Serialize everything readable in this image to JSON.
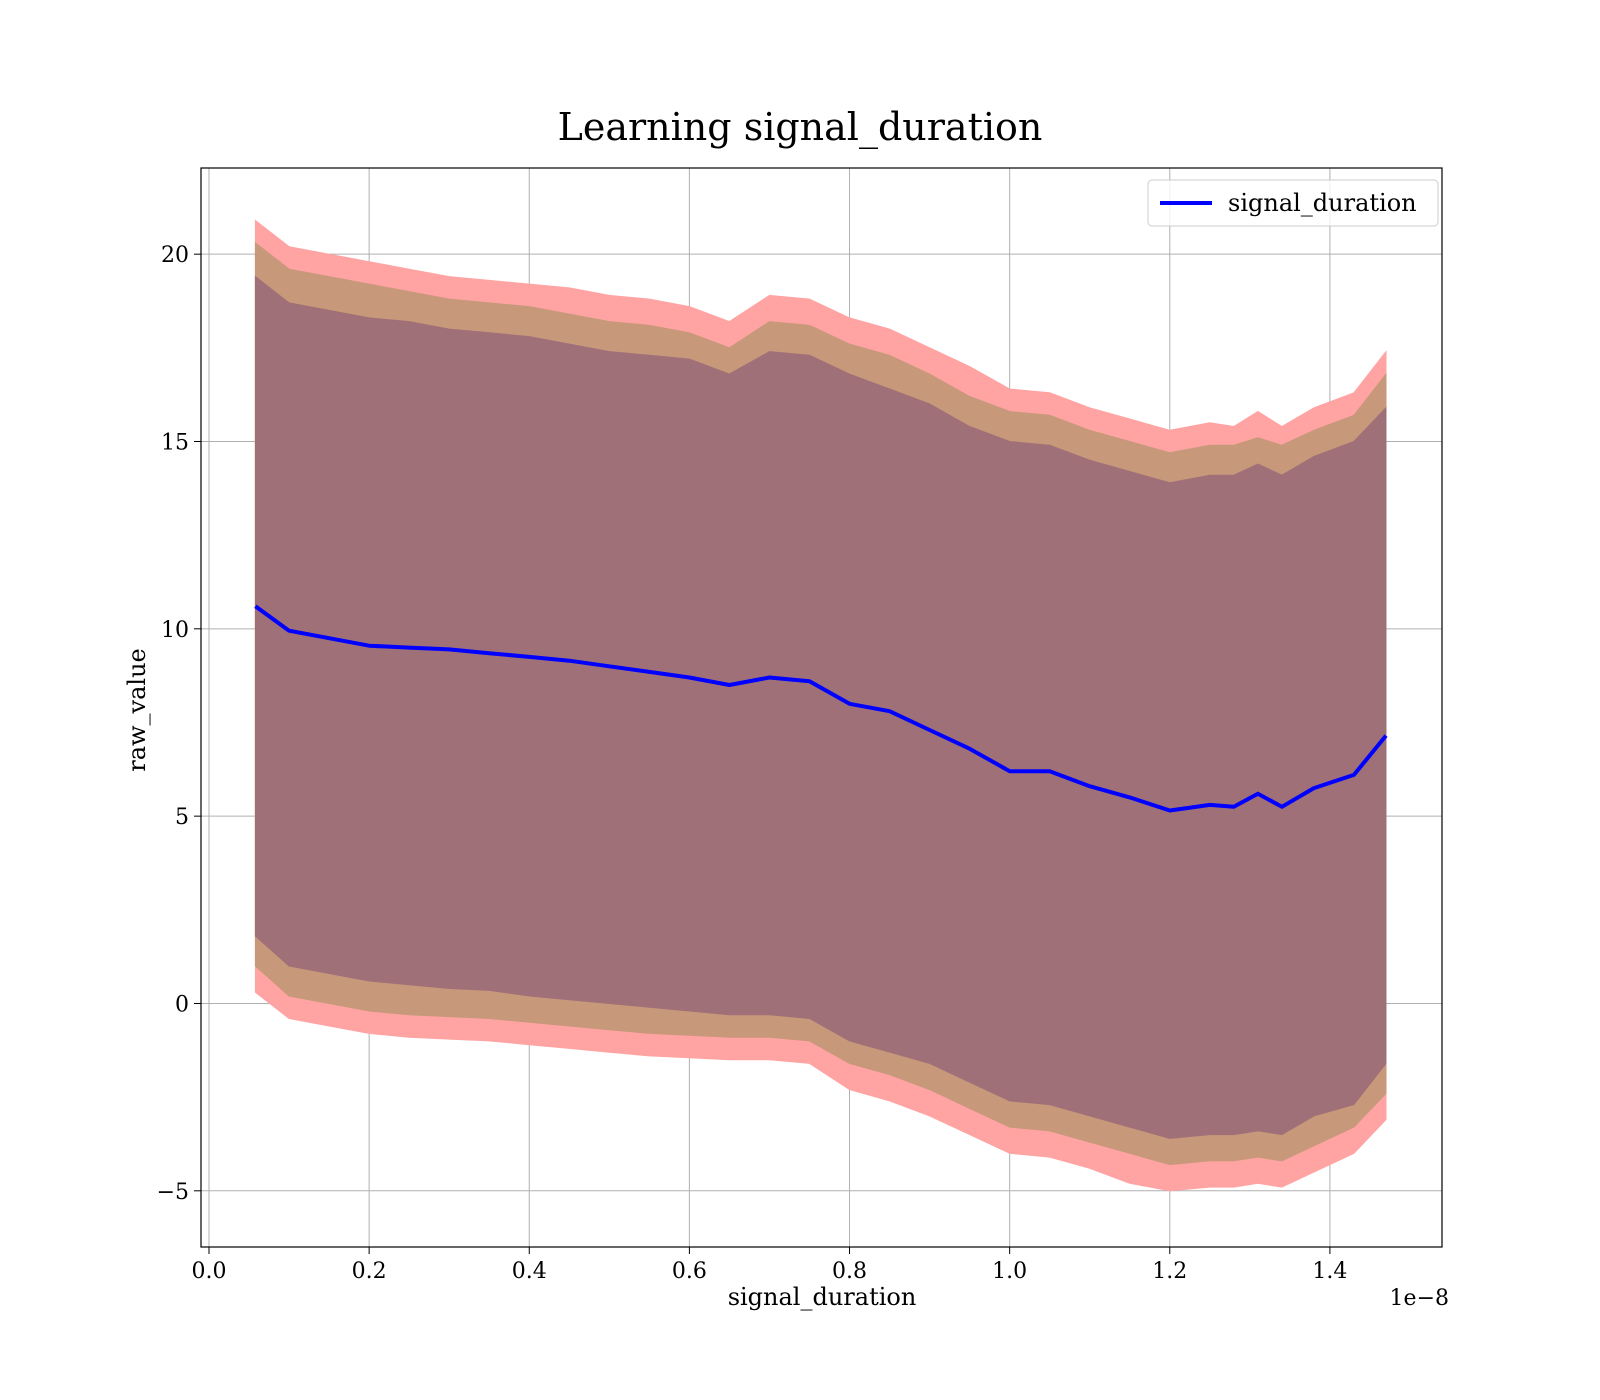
{
  "chart_data": {
    "type": "area",
    "title": "Learning signal_duration",
    "xlabel": "signal_duration",
    "ylabel": "raw_value",
    "x_offset_label": "1e−8",
    "xlim": [
      -0.01,
      1.54
    ],
    "ylim": [
      -6.5,
      22.3
    ],
    "x_ticks": [
      0.0,
      0.2,
      0.4,
      0.6,
      0.8,
      1.0,
      1.2,
      1.4
    ],
    "x_tick_labels": [
      "0.0",
      "0.2",
      "0.4",
      "0.6",
      "0.8",
      "1.0",
      "1.2",
      "1.4"
    ],
    "y_ticks": [
      -5,
      0,
      5,
      10,
      15,
      20
    ],
    "y_tick_labels": [
      "−5",
      "0",
      "5",
      "10",
      "15",
      "20"
    ],
    "grid": true,
    "legend_position": "top-right",
    "colors": {
      "line": "#0000ff",
      "band_outer": "#ffa3a3",
      "band_middle": "#c8987a",
      "band_inner": "#a07078"
    },
    "x": [
      0.058,
      0.1,
      0.15,
      0.2,
      0.25,
      0.3,
      0.35,
      0.4,
      0.45,
      0.5,
      0.55,
      0.6,
      0.65,
      0.7,
      0.75,
      0.8,
      0.85,
      0.9,
      0.95,
      1.0,
      1.05,
      1.1,
      1.15,
      1.2,
      1.25,
      1.28,
      1.31,
      1.34,
      1.38,
      1.43,
      1.47
    ],
    "series": [
      {
        "name": "signal_duration",
        "values": [
          10.6,
          9.95,
          9.75,
          9.55,
          9.5,
          9.45,
          9.35,
          9.25,
          9.15,
          9.0,
          8.85,
          8.7,
          8.5,
          8.7,
          8.6,
          8.0,
          7.8,
          7.3,
          6.8,
          6.2,
          6.2,
          5.8,
          5.5,
          5.15,
          5.3,
          5.25,
          5.6,
          5.25,
          5.75,
          6.1,
          7.15
        ]
      }
    ],
    "bands": [
      {
        "role": "outer",
        "upper": [
          20.9,
          20.2,
          20.0,
          19.8,
          19.6,
          19.4,
          19.3,
          19.2,
          19.1,
          18.9,
          18.8,
          18.6,
          18.2,
          18.9,
          18.8,
          18.3,
          18.0,
          17.5,
          17.0,
          16.4,
          16.3,
          15.9,
          15.6,
          15.3,
          15.5,
          15.4,
          15.8,
          15.4,
          15.9,
          16.3,
          17.4
        ],
        "lower": [
          0.3,
          -0.4,
          -0.6,
          -0.8,
          -0.9,
          -0.95,
          -1.0,
          -1.1,
          -1.2,
          -1.3,
          -1.4,
          -1.45,
          -1.5,
          -1.5,
          -1.6,
          -2.3,
          -2.6,
          -3.0,
          -3.5,
          -4.0,
          -4.1,
          -4.4,
          -4.8,
          -5.0,
          -4.9,
          -4.9,
          -4.8,
          -4.9,
          -4.5,
          -4.0,
          -3.1
        ]
      },
      {
        "role": "middle",
        "upper": [
          20.3,
          19.6,
          19.4,
          19.2,
          19.0,
          18.8,
          18.7,
          18.6,
          18.4,
          18.2,
          18.1,
          17.9,
          17.5,
          18.2,
          18.1,
          17.6,
          17.3,
          16.8,
          16.2,
          15.8,
          15.7,
          15.3,
          15.0,
          14.7,
          14.9,
          14.9,
          15.1,
          14.9,
          15.3,
          15.7,
          16.8
        ],
        "lower": [
          1.0,
          0.2,
          0.0,
          -0.2,
          -0.3,
          -0.35,
          -0.4,
          -0.5,
          -0.6,
          -0.7,
          -0.8,
          -0.85,
          -0.9,
          -0.9,
          -1.0,
          -1.6,
          -1.9,
          -2.3,
          -2.8,
          -3.3,
          -3.4,
          -3.7,
          -4.0,
          -4.3,
          -4.2,
          -4.2,
          -4.1,
          -4.2,
          -3.8,
          -3.3,
          -2.4
        ]
      },
      {
        "role": "inner",
        "upper": [
          19.4,
          18.7,
          18.5,
          18.3,
          18.2,
          18.0,
          17.9,
          17.8,
          17.6,
          17.4,
          17.3,
          17.2,
          16.8,
          17.4,
          17.3,
          16.8,
          16.4,
          16.0,
          15.4,
          15.0,
          14.9,
          14.5,
          14.2,
          13.9,
          14.1,
          14.1,
          14.4,
          14.1,
          14.6,
          15.0,
          15.9
        ],
        "lower": [
          1.8,
          1.0,
          0.8,
          0.6,
          0.5,
          0.4,
          0.35,
          0.2,
          0.1,
          0.0,
          -0.1,
          -0.2,
          -0.3,
          -0.3,
          -0.4,
          -1.0,
          -1.3,
          -1.6,
          -2.1,
          -2.6,
          -2.7,
          -3.0,
          -3.3,
          -3.6,
          -3.5,
          -3.5,
          -3.4,
          -3.5,
          -3.0,
          -2.7,
          -1.6
        ]
      }
    ]
  }
}
